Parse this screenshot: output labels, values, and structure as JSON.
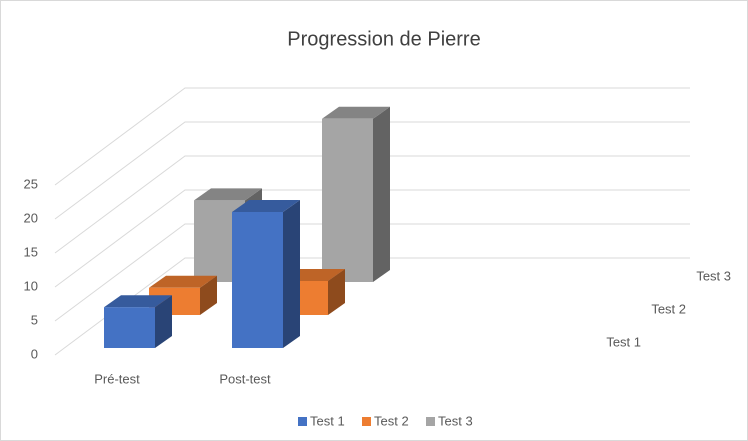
{
  "chart_data": {
    "type": "bar3d",
    "title": "Progression de Pierre",
    "categories": [
      "Pré-test",
      "Post-test"
    ],
    "series": [
      {
        "name": "Test 1",
        "color": "#4472c4",
        "values": [
          6,
          20
        ]
      },
      {
        "name": "Test 2",
        "color": "#ed7d31",
        "values": [
          4,
          5
        ]
      },
      {
        "name": "Test 3",
        "color": "#a5a5a5",
        "values": [
          12,
          24
        ]
      }
    ],
    "ylim": [
      0,
      25
    ],
    "yticks": [
      0,
      5,
      10,
      15,
      20,
      25
    ],
    "grid": true,
    "legend": "bottom"
  }
}
